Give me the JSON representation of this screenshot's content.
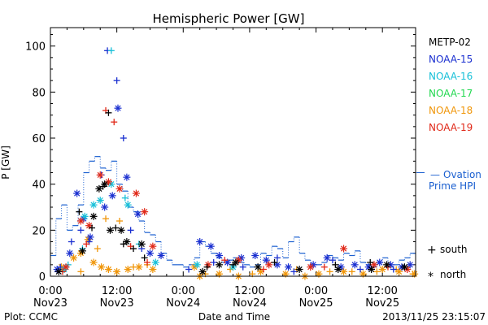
{
  "chart_data": {
    "type": "scatter",
    "title": "Hemispheric Power [GW]",
    "xlabel": "Date and Time",
    "ylabel": "P [GW]",
    "xlim": [
      0,
      66
    ],
    "ylim": [
      0,
      108
    ],
    "x_unit": "hours from 0:00 Nov23",
    "x_ticks": [
      {
        "x": 0,
        "time": "0:00",
        "date": "Nov23"
      },
      {
        "x": 12,
        "time": "12:00",
        "date": "Nov23"
      },
      {
        "x": 24,
        "time": "0:00",
        "date": "Nov24"
      },
      {
        "x": 36,
        "time": "12:00",
        "date": "Nov24"
      },
      {
        "x": 48,
        "time": "0:00",
        "date": "Nov25"
      },
      {
        "x": 60,
        "time": "12:00",
        "date": "Nov25"
      }
    ],
    "y_ticks": [
      0,
      20,
      40,
      60,
      80,
      100
    ],
    "legend": {
      "placement": "right",
      "entries": [
        {
          "name": "METP-02",
          "color": "#000000"
        },
        {
          "name": "NOAA-15",
          "color": "#1a2fd0"
        },
        {
          "name": "NOAA-16",
          "color": "#17c0d8"
        },
        {
          "name": "NOAA-17",
          "color": "#22d850"
        },
        {
          "name": "NOAA-18",
          "color": "#f0960a"
        },
        {
          "name": "NOAA-19",
          "color": "#e02818"
        }
      ],
      "ovation_label_line1": "Ovation",
      "ovation_label_line2": "Prime HPI",
      "ovation_dash": "—",
      "ovation_color": "#1a5fd0",
      "symbol_plus": "+",
      "symbol_star": "*",
      "south_label": "south",
      "north_label": "north"
    },
    "ovation": {
      "x": [
        0,
        1,
        2,
        3,
        4,
        5,
        6,
        7,
        8,
        9,
        10,
        11,
        12,
        13,
        14,
        15,
        16,
        17,
        18,
        19,
        20,
        21,
        22,
        23,
        24,
        25,
        26,
        27,
        28,
        29,
        30,
        31,
        32,
        33,
        34,
        35,
        36,
        37,
        38,
        39,
        40,
        41,
        42,
        43,
        44,
        45,
        46,
        47,
        48,
        49,
        50,
        51,
        52,
        53,
        54,
        55,
        56,
        57,
        58,
        59,
        60,
        61,
        62,
        63,
        64,
        65,
        66
      ],
      "y": [
        9,
        25,
        31,
        20,
        22,
        31,
        45,
        50,
        52,
        47,
        46,
        50,
        40,
        37,
        30,
        28,
        24,
        19,
        18,
        15,
        10,
        7,
        5,
        5,
        4,
        5,
        8,
        15,
        13,
        10,
        8,
        6,
        7,
        8,
        6,
        5,
        4,
        5,
        10,
        9,
        13,
        12,
        8,
        15,
        17,
        10,
        7,
        5,
        5,
        6,
        9,
        8,
        7,
        10,
        9,
        11,
        6,
        5,
        4,
        6,
        8,
        4,
        5,
        7,
        8,
        10,
        12
      ]
    },
    "series": [
      {
        "name": "METP-02",
        "color": "#000000",
        "south": [
          [
            5.2,
            28
          ],
          [
            7.5,
            21
          ],
          [
            9.5,
            39
          ],
          [
            10.5,
            71
          ],
          [
            11.8,
            21
          ],
          [
            13.2,
            14
          ],
          [
            15.0,
            12
          ],
          [
            17.0,
            8
          ],
          [
            28.3,
            4
          ],
          [
            33.0,
            5
          ],
          [
            40.5,
            6
          ],
          [
            51.5,
            5
          ],
          [
            57.8,
            6
          ]
        ],
        "north": [
          [
            1.5,
            2
          ],
          [
            5.8,
            11
          ],
          [
            7.8,
            26
          ],
          [
            8.8,
            38
          ],
          [
            9.8,
            40
          ],
          [
            10.8,
            20
          ],
          [
            12.8,
            20
          ],
          [
            13.8,
            15
          ],
          [
            16.5,
            14
          ],
          [
            27.5,
            2
          ],
          [
            30.5,
            5
          ],
          [
            33.5,
            6
          ],
          [
            37.5,
            4
          ],
          [
            45.0,
            3
          ],
          [
            52.0,
            3
          ],
          [
            58.0,
            3
          ],
          [
            60.8,
            5
          ],
          [
            64.0,
            4
          ]
        ]
      },
      {
        "name": "NOAA-15",
        "color": "#1a2fd0",
        "south": [
          [
            1.8,
            4
          ],
          [
            3.8,
            15
          ],
          [
            5.5,
            20
          ],
          [
            7.0,
            15
          ],
          [
            9.2,
            44
          ],
          [
            10.3,
            98
          ],
          [
            12.0,
            85
          ],
          [
            13.2,
            60
          ],
          [
            14.5,
            20
          ],
          [
            16.5,
            12
          ],
          [
            25.0,
            3
          ],
          [
            29.5,
            6
          ],
          [
            34.8,
            4
          ],
          [
            41.0,
            8
          ],
          [
            44.0,
            2
          ],
          [
            51.0,
            7
          ],
          [
            56.0,
            3
          ],
          [
            62.0,
            3
          ]
        ],
        "north": [
          [
            1.2,
            3
          ],
          [
            3.5,
            10
          ],
          [
            4.8,
            36
          ],
          [
            6.0,
            25
          ],
          [
            7.2,
            17
          ],
          [
            9.8,
            30
          ],
          [
            11.2,
            35
          ],
          [
            12.2,
            73
          ],
          [
            13.8,
            43
          ],
          [
            15.8,
            27
          ],
          [
            18.0,
            10
          ],
          [
            20.0,
            9
          ],
          [
            27.0,
            15
          ],
          [
            29.0,
            13
          ],
          [
            30.5,
            9
          ],
          [
            32.0,
            6
          ],
          [
            34.5,
            8
          ],
          [
            37.0,
            9
          ],
          [
            39.0,
            7
          ],
          [
            41.0,
            5
          ],
          [
            43.0,
            4
          ],
          [
            47.5,
            5
          ],
          [
            50.0,
            8
          ],
          [
            52.5,
            4
          ],
          [
            55.0,
            5
          ],
          [
            57.5,
            4
          ],
          [
            59.5,
            6
          ],
          [
            61.5,
            5
          ],
          [
            63.5,
            4
          ],
          [
            65.0,
            5
          ]
        ]
      },
      {
        "name": "NOAA-16",
        "color": "#17c0d8",
        "south": [
          [
            3.2,
            5
          ],
          [
            5.8,
            12
          ],
          [
            11.0,
            98
          ],
          [
            13.5,
            34
          ],
          [
            16.0,
            14
          ]
        ],
        "north": [
          [
            2.5,
            3
          ],
          [
            6.2,
            26
          ],
          [
            7.8,
            31
          ],
          [
            9.0,
            33
          ],
          [
            11.0,
            40
          ],
          [
            14.0,
            31
          ],
          [
            19.0,
            6
          ],
          [
            26.5,
            5
          ],
          [
            33.0,
            4
          ]
        ]
      },
      {
        "name": "NOAA-17",
        "color": "#22d850",
        "south": [],
        "north": []
      },
      {
        "name": "NOAA-18",
        "color": "#f0960a",
        "south": [
          [
            2.5,
            3
          ],
          [
            5.5,
            2
          ],
          [
            8.5,
            12
          ],
          [
            10.0,
            25
          ],
          [
            12.5,
            24
          ],
          [
            15.0,
            4
          ],
          [
            17.5,
            5
          ],
          [
            28.0,
            1
          ],
          [
            32.5,
            3
          ],
          [
            36.5,
            1
          ],
          [
            44.5,
            3
          ],
          [
            50.5,
            2
          ],
          [
            54.5,
            2
          ],
          [
            59.0,
            2
          ],
          [
            62.5,
            3
          ],
          [
            65.5,
            1
          ]
        ],
        "north": [
          [
            2.0,
            4
          ],
          [
            4.2,
            8
          ],
          [
            5.5,
            10
          ],
          [
            6.8,
            16
          ],
          [
            7.8,
            6
          ],
          [
            9.2,
            4
          ],
          [
            10.5,
            3
          ],
          [
            12.0,
            2
          ],
          [
            14.0,
            3
          ],
          [
            16.0,
            4
          ],
          [
            18.5,
            3
          ],
          [
            26.0,
            4
          ],
          [
            27.0,
            0
          ],
          [
            30.5,
            1
          ],
          [
            34.0,
            0
          ],
          [
            38.0,
            2
          ],
          [
            42.5,
            1
          ],
          [
            46.0,
            0
          ],
          [
            48.5,
            1
          ],
          [
            53.0,
            2
          ],
          [
            56.5,
            1
          ],
          [
            60.0,
            3
          ],
          [
            63.0,
            2
          ],
          [
            65.8,
            1
          ]
        ]
      },
      {
        "name": "NOAA-19",
        "color": "#e02818",
        "south": [
          [
            2.2,
            2
          ],
          [
            6.5,
            14
          ],
          [
            10.0,
            72
          ],
          [
            11.5,
            67
          ],
          [
            14.5,
            13
          ],
          [
            17.5,
            6
          ],
          [
            31.5,
            7
          ],
          [
            38.5,
            3
          ],
          [
            49.5,
            4
          ],
          [
            61.0,
            4
          ]
        ],
        "north": [
          [
            2.8,
            4
          ],
          [
            5.5,
            24
          ],
          [
            7.0,
            22
          ],
          [
            9.0,
            44
          ],
          [
            10.5,
            41
          ],
          [
            12.5,
            38
          ],
          [
            15.5,
            36
          ],
          [
            17.0,
            28
          ],
          [
            18.5,
            13
          ],
          [
            28.5,
            5
          ],
          [
            34.0,
            7
          ],
          [
            39.5,
            5
          ],
          [
            47.0,
            4
          ],
          [
            53.0,
            12
          ],
          [
            58.5,
            5
          ],
          [
            64.5,
            3
          ]
        ]
      }
    ]
  },
  "footer": {
    "plot_label": "Plot: CCMC",
    "timestamp": "2013/11/25 23:15:07"
  }
}
